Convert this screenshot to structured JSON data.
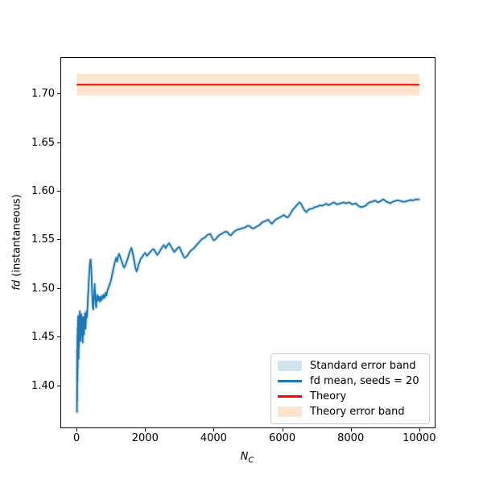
{
  "chart_data": {
    "type": "line",
    "title": "",
    "xlabel": {
      "math": "N",
      "subscript": "C"
    },
    "ylabel": {
      "math": "fd",
      "rest": " (instantaneous)"
    },
    "xlim": [
      -450,
      10450
    ],
    "ylim": [
      1.3575,
      1.7375
    ],
    "grid": false,
    "x_ticks": {
      "values": [
        0,
        2000,
        4000,
        6000,
        8000,
        10000
      ],
      "labels": [
        "0",
        "2000",
        "4000",
        "6000",
        "8000",
        "10000"
      ]
    },
    "y_ticks": {
      "values": [
        1.4,
        1.45,
        1.5,
        1.55,
        1.6,
        1.65,
        1.7
      ],
      "labels": [
        "1.40",
        "1.45",
        "1.50",
        "1.55",
        "1.60",
        "1.65",
        "1.70"
      ]
    },
    "legend": {
      "position": "lower right",
      "entries": [
        {
          "label": "Standard error band",
          "swatch": "patch",
          "color": "#d2e3f0"
        },
        {
          "label": "fd mean, seeds = 20",
          "swatch": "line",
          "color": "#1f77b4"
        },
        {
          "label": "Theory",
          "swatch": "line",
          "color": "#ff0000"
        },
        {
          "label": "Theory error band",
          "swatch": "patch",
          "color": "#fde4cd"
        }
      ]
    },
    "series": [
      {
        "name": "Theory error band",
        "type": "hband",
        "color": "#fde4cd",
        "low": 1.699,
        "high": 1.721,
        "x_range": [
          0,
          10000
        ]
      },
      {
        "name": "Theory",
        "type": "hline",
        "color": "#ff0000",
        "value": 1.71,
        "x_range": [
          0,
          10000
        ],
        "linewidth": 2
      },
      {
        "name": "Standard error band",
        "type": "band",
        "color": "#cfe0ee",
        "halfwidth": 0.002,
        "follows": "fd mean, seeds = 20"
      },
      {
        "name": "fd mean, seeds = 20",
        "type": "line",
        "color": "#1f77b4",
        "linewidth": 1.8,
        "points": [
          [
            10,
            1.373
          ],
          [
            14,
            1.438
          ],
          [
            18,
            1.385
          ],
          [
            22,
            1.452
          ],
          [
            26,
            1.405
          ],
          [
            30,
            1.46
          ],
          [
            34,
            1.418
          ],
          [
            38,
            1.468
          ],
          [
            42,
            1.43
          ],
          [
            46,
            1.472
          ],
          [
            50,
            1.44
          ],
          [
            55,
            1.465
          ],
          [
            60,
            1.428
          ],
          [
            65,
            1.458
          ],
          [
            70,
            1.44
          ],
          [
            75,
            1.47
          ],
          [
            80,
            1.448
          ],
          [
            85,
            1.474
          ],
          [
            90,
            1.453
          ],
          [
            95,
            1.477
          ],
          [
            100,
            1.462
          ],
          [
            110,
            1.47
          ],
          [
            120,
            1.446
          ],
          [
            130,
            1.463
          ],
          [
            140,
            1.474
          ],
          [
            150,
            1.453
          ],
          [
            160,
            1.471
          ],
          [
            170,
            1.459
          ],
          [
            180,
            1.445
          ],
          [
            190,
            1.461
          ],
          [
            200,
            1.471
          ],
          [
            215,
            1.453
          ],
          [
            230,
            1.467
          ],
          [
            245,
            1.475
          ],
          [
            260,
            1.459
          ],
          [
            275,
            1.469
          ],
          [
            290,
            1.477
          ],
          [
            305,
            1.471
          ],
          [
            320,
            1.482
          ],
          [
            335,
            1.493
          ],
          [
            350,
            1.504
          ],
          [
            365,
            1.513
          ],
          [
            380,
            1.522
          ],
          [
            395,
            1.529
          ],
          [
            410,
            1.53
          ],
          [
            425,
            1.523
          ],
          [
            440,
            1.511
          ],
          [
            455,
            1.494
          ],
          [
            470,
            1.482
          ],
          [
            485,
            1.479
          ],
          [
            500,
            1.488
          ],
          [
            515,
            1.499
          ],
          [
            528,
            1.505
          ],
          [
            540,
            1.495
          ],
          [
            555,
            1.484
          ],
          [
            570,
            1.481
          ],
          [
            585,
            1.489
          ],
          [
            600,
            1.494
          ],
          [
            620,
            1.488
          ],
          [
            645,
            1.492
          ],
          [
            670,
            1.487
          ],
          [
            695,
            1.492
          ],
          [
            720,
            1.488
          ],
          [
            745,
            1.493
          ],
          [
            770,
            1.49
          ],
          [
            795,
            1.494
          ],
          [
            820,
            1.491
          ],
          [
            845,
            1.496
          ],
          [
            870,
            1.493
          ],
          [
            895,
            1.498
          ],
          [
            920,
            1.5
          ],
          [
            950,
            1.503
          ],
          [
            980,
            1.506
          ],
          [
            1010,
            1.51
          ],
          [
            1040,
            1.515
          ],
          [
            1070,
            1.52
          ],
          [
            1100,
            1.525
          ],
          [
            1130,
            1.529
          ],
          [
            1155,
            1.532
          ],
          [
            1180,
            1.528
          ],
          [
            1210,
            1.533
          ],
          [
            1240,
            1.536
          ],
          [
            1270,
            1.533
          ],
          [
            1300,
            1.53
          ],
          [
            1330,
            1.527
          ],
          [
            1360,
            1.524
          ],
          [
            1390,
            1.522
          ],
          [
            1420,
            1.524
          ],
          [
            1450,
            1.527
          ],
          [
            1480,
            1.53
          ],
          [
            1510,
            1.533
          ],
          [
            1540,
            1.537
          ],
          [
            1570,
            1.54
          ],
          [
            1600,
            1.542
          ],
          [
            1630,
            1.538
          ],
          [
            1660,
            1.533
          ],
          [
            1690,
            1.527
          ],
          [
            1720,
            1.521
          ],
          [
            1750,
            1.518
          ],
          [
            1780,
            1.521
          ],
          [
            1810,
            1.525
          ],
          [
            1840,
            1.528
          ],
          [
            1870,
            1.531
          ],
          [
            1900,
            1.532
          ],
          [
            1950,
            1.535
          ],
          [
            2000,
            1.537
          ],
          [
            2050,
            1.534
          ],
          [
            2100,
            1.536
          ],
          [
            2150,
            1.538
          ],
          [
            2200,
            1.54
          ],
          [
            2250,
            1.541
          ],
          [
            2300,
            1.538
          ],
          [
            2350,
            1.535
          ],
          [
            2400,
            1.537
          ],
          [
            2450,
            1.54
          ],
          [
            2500,
            1.543
          ],
          [
            2550,
            1.545
          ],
          [
            2600,
            1.542
          ],
          [
            2650,
            1.545
          ],
          [
            2700,
            1.547
          ],
          [
            2750,
            1.544
          ],
          [
            2800,
            1.541
          ],
          [
            2850,
            1.538
          ],
          [
            2900,
            1.54
          ],
          [
            2950,
            1.542
          ],
          [
            3000,
            1.543
          ],
          [
            3050,
            1.539
          ],
          [
            3100,
            1.535
          ],
          [
            3150,
            1.532
          ],
          [
            3200,
            1.533
          ],
          [
            3250,
            1.535
          ],
          [
            3300,
            1.538
          ],
          [
            3350,
            1.54
          ],
          [
            3400,
            1.541
          ],
          [
            3450,
            1.543
          ],
          [
            3500,
            1.545
          ],
          [
            3550,
            1.547
          ],
          [
            3600,
            1.549
          ],
          [
            3650,
            1.551
          ],
          [
            3700,
            1.552
          ],
          [
            3750,
            1.553
          ],
          [
            3800,
            1.555
          ],
          [
            3850,
            1.556
          ],
          [
            3900,
            1.5565
          ],
          [
            3950,
            1.553
          ],
          [
            4000,
            1.55
          ],
          [
            4050,
            1.551
          ],
          [
            4100,
            1.553
          ],
          [
            4150,
            1.555
          ],
          [
            4200,
            1.556
          ],
          [
            4250,
            1.557
          ],
          [
            4300,
            1.558
          ],
          [
            4350,
            1.559
          ],
          [
            4400,
            1.5585
          ],
          [
            4450,
            1.556
          ],
          [
            4500,
            1.555
          ],
          [
            4550,
            1.557
          ],
          [
            4600,
            1.559
          ],
          [
            4650,
            1.56
          ],
          [
            4700,
            1.561
          ],
          [
            4750,
            1.5615
          ],
          [
            4800,
            1.562
          ],
          [
            4850,
            1.5625
          ],
          [
            4900,
            1.563
          ],
          [
            4950,
            1.564
          ],
          [
            5000,
            1.565
          ],
          [
            5050,
            1.5645
          ],
          [
            5100,
            1.563
          ],
          [
            5150,
            1.562
          ],
          [
            5200,
            1.563
          ],
          [
            5250,
            1.564
          ],
          [
            5300,
            1.565
          ],
          [
            5350,
            1.566
          ],
          [
            5400,
            1.568
          ],
          [
            5450,
            1.569
          ],
          [
            5500,
            1.5695
          ],
          [
            5550,
            1.5705
          ],
          [
            5600,
            1.571
          ],
          [
            5650,
            1.5685
          ],
          [
            5700,
            1.567
          ],
          [
            5750,
            1.569
          ],
          [
            5800,
            1.571
          ],
          [
            5850,
            1.572
          ],
          [
            5900,
            1.573
          ],
          [
            5950,
            1.574
          ],
          [
            6000,
            1.575
          ],
          [
            6050,
            1.576
          ],
          [
            6100,
            1.5745
          ],
          [
            6150,
            1.5735
          ],
          [
            6200,
            1.575
          ],
          [
            6250,
            1.578
          ],
          [
            6300,
            1.581
          ],
          [
            6350,
            1.583
          ],
          [
            6400,
            1.585
          ],
          [
            6450,
            1.587
          ],
          [
            6500,
            1.589
          ],
          [
            6550,
            1.5875
          ],
          [
            6600,
            1.584
          ],
          [
            6650,
            1.581
          ],
          [
            6700,
            1.579
          ],
          [
            6750,
            1.581
          ],
          [
            6800,
            1.582
          ],
          [
            6850,
            1.5825
          ],
          [
            6900,
            1.583
          ],
          [
            6950,
            1.584
          ],
          [
            7000,
            1.5845
          ],
          [
            7050,
            1.585
          ],
          [
            7100,
            1.586
          ],
          [
            7150,
            1.5855
          ],
          [
            7200,
            1.586
          ],
          [
            7250,
            1.587
          ],
          [
            7300,
            1.5875
          ],
          [
            7350,
            1.586
          ],
          [
            7400,
            1.587
          ],
          [
            7450,
            1.588
          ],
          [
            7500,
            1.589
          ],
          [
            7550,
            1.588
          ],
          [
            7600,
            1.587
          ],
          [
            7650,
            1.5875
          ],
          [
            7700,
            1.588
          ],
          [
            7750,
            1.5885
          ],
          [
            7800,
            1.589
          ],
          [
            7850,
            1.588
          ],
          [
            7900,
            1.5885
          ],
          [
            7950,
            1.589
          ],
          [
            8000,
            1.588
          ],
          [
            8050,
            1.587
          ],
          [
            8100,
            1.5875
          ],
          [
            8150,
            1.588
          ],
          [
            8200,
            1.586
          ],
          [
            8250,
            1.585
          ],
          [
            8300,
            1.584
          ],
          [
            8350,
            1.5845
          ],
          [
            8400,
            1.585
          ],
          [
            8450,
            1.586
          ],
          [
            8500,
            1.588
          ],
          [
            8550,
            1.589
          ],
          [
            8600,
            1.5895
          ],
          [
            8650,
            1.59
          ],
          [
            8700,
            1.591
          ],
          [
            8750,
            1.59
          ],
          [
            8800,
            1.589
          ],
          [
            8850,
            1.59
          ],
          [
            8900,
            1.591
          ],
          [
            8950,
            1.592
          ],
          [
            9000,
            1.591
          ],
          [
            9050,
            1.5895
          ],
          [
            9100,
            1.589
          ],
          [
            9150,
            1.588
          ],
          [
            9200,
            1.589
          ],
          [
            9250,
            1.59
          ],
          [
            9300,
            1.5905
          ],
          [
            9350,
            1.591
          ],
          [
            9400,
            1.591
          ],
          [
            9450,
            1.5905
          ],
          [
            9500,
            1.59
          ],
          [
            9550,
            1.5895
          ],
          [
            9600,
            1.59
          ],
          [
            9650,
            1.5905
          ],
          [
            9700,
            1.591
          ],
          [
            9750,
            1.5915
          ],
          [
            9800,
            1.591
          ],
          [
            9850,
            1.5915
          ],
          [
            9900,
            1.592
          ],
          [
            9950,
            1.592
          ],
          [
            10000,
            1.592
          ]
        ]
      }
    ]
  }
}
